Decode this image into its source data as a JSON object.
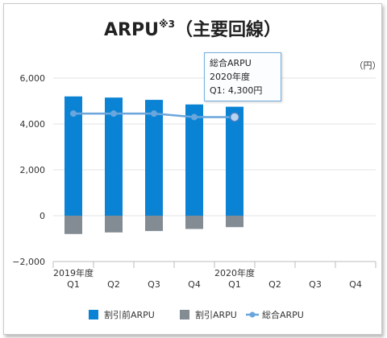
{
  "chart_data": {
    "type": "bar",
    "title": "ARPU",
    "title_note": "※3",
    "title_sub": "（主要回線）",
    "unit_label": "（円）",
    "ylim": [
      -2000,
      6000
    ],
    "y_ticks": [
      6000,
      4000,
      2000,
      0,
      -2000
    ],
    "y_tick_labels": [
      "6,000",
      "4,000",
      "2,000",
      "0",
      "−2,000"
    ],
    "grid": true,
    "categories": [
      "Q1",
      "Q2",
      "Q3",
      "Q4",
      "Q1",
      "Q2",
      "Q3",
      "Q4"
    ],
    "year_labels": [
      {
        "label": "2019年度",
        "at_category": 0
      },
      {
        "label": "2020年度",
        "at_category": 4
      }
    ],
    "series": [
      {
        "name": "割引前ARPU",
        "type": "bar",
        "color": "#0a83d4",
        "values": [
          5200,
          5150,
          5050,
          4850,
          4750,
          null,
          null,
          null
        ]
      },
      {
        "name": "割引ARPU",
        "type": "bar",
        "color": "#838b93",
        "values": [
          -800,
          -730,
          -670,
          -580,
          -500,
          null,
          null,
          null
        ]
      },
      {
        "name": "総合ARPU",
        "type": "line",
        "color": "#6aa6dc",
        "values": [
          4450,
          4450,
          4450,
          4300,
          4300,
          null,
          null,
          null
        ]
      }
    ],
    "legend_position": "bottom",
    "tooltip": {
      "line1": "総合ARPU",
      "line2": "2020年度",
      "line3": "Q1: 4,300円",
      "category_index": 4
    }
  }
}
